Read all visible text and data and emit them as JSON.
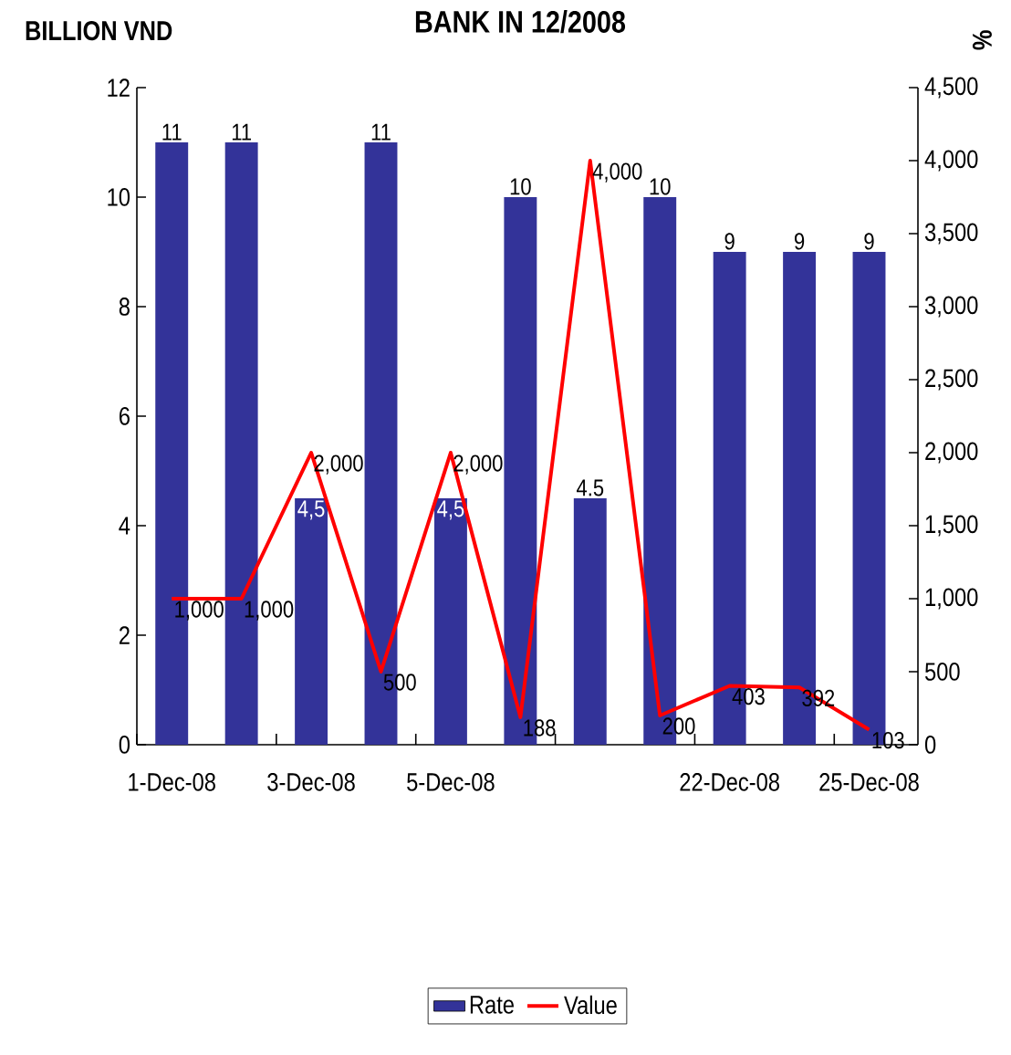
{
  "chart_data": {
    "type": "bar",
    "title": "BANK IN 12/2008",
    "ylabel": "BILLION VND",
    "y2label": "%",
    "categories": [
      "1-Dec-08",
      null,
      "3-Dec-08",
      null,
      "5-Dec-08",
      null,
      null,
      null,
      "22-Dec-08",
      null,
      "25-Dec-08"
    ],
    "series": [
      {
        "name": "Rate",
        "color": "#333399",
        "values": [
          11,
          11,
          4.5,
          11,
          4.5,
          10,
          4.5,
          10,
          9,
          9,
          9
        ],
        "value_labels": [
          "11",
          "11",
          "4,5",
          "11",
          "4,5",
          "10",
          "4.5",
          "10",
          "9",
          "9",
          "9"
        ]
      },
      {
        "name": "Value",
        "type": "line",
        "axis": "y2",
        "color": "#ff0000",
        "values": [
          1000,
          1000,
          2000,
          500,
          2000,
          188,
          4000,
          200,
          403,
          392,
          103
        ],
        "value_labels": [
          "1,000",
          "1,000",
          "2,000",
          "500",
          "2,000",
          "188",
          "4,000",
          "200",
          "403",
          "392",
          "103"
        ]
      }
    ],
    "ylim": [
      0,
      12
    ],
    "yticks": [
      0,
      2,
      4,
      6,
      8,
      10,
      12
    ],
    "y2lim": [
      0,
      4500
    ],
    "y2ticks": [
      0,
      500,
      {
        "value": 1000,
        "label": "1,000"
      },
      {
        "value": 1500,
        "label": "1,500"
      },
      {
        "value": 2000,
        "label": "2,000"
      },
      {
        "value": 2500,
        "label": "2,500"
      },
      {
        "value": 3000,
        "label": "3,000"
      },
      {
        "value": 3500,
        "label": "3,500"
      },
      {
        "value": 4000,
        "label": "4,000"
      },
      {
        "value": 4500,
        "label": "4,500"
      }
    ],
    "legend": "bottom",
    "marker": "none",
    "line_style": "solid"
  }
}
